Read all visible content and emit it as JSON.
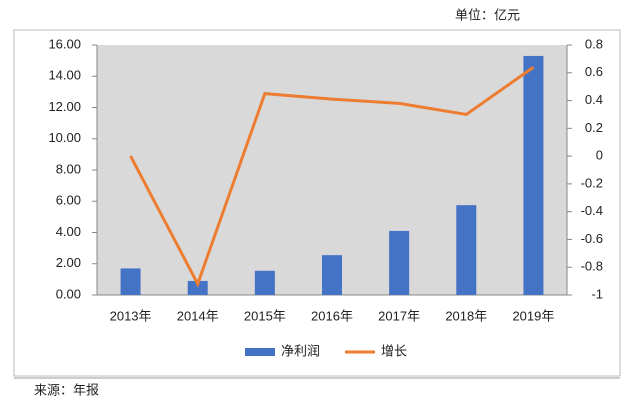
{
  "chart_data": {
    "type": "bar",
    "unit_note": "单位：亿元",
    "source": "来源：年报",
    "categories": [
      "2013年",
      "2014年",
      "2015年",
      "2016年",
      "2017年",
      "2018年",
      "2019年"
    ],
    "series": [
      {
        "name": "净利润",
        "type": "bar",
        "color": "#4472c4",
        "values": [
          1.7,
          0.9,
          1.55,
          2.55,
          4.1,
          5.75,
          15.3
        ]
      },
      {
        "name": "增长",
        "type": "line",
        "axis": "y2",
        "color": "#ed7d31",
        "values": [
          0.0,
          -0.92,
          0.45,
          0.41,
          0.38,
          0.3,
          0.64
        ]
      }
    ],
    "ylim": [
      0,
      16
    ],
    "yticks": [
      {
        "value": 0,
        "label": "0.00"
      },
      {
        "value": 2,
        "label": "2.00"
      },
      {
        "value": 4,
        "label": "4.00"
      },
      {
        "value": 6,
        "label": "6.00"
      },
      {
        "value": 8,
        "label": "8.00"
      },
      {
        "value": 10,
        "label": "10.00"
      },
      {
        "value": 12,
        "label": "12.00"
      },
      {
        "value": 14,
        "label": "14.00"
      },
      {
        "value": 16,
        "label": "16.00"
      }
    ],
    "y2lim": [
      -1,
      0.8
    ],
    "y2ticks": [
      -1,
      -0.8,
      -0.6,
      -0.4,
      -0.2,
      0,
      0.2,
      0.4,
      0.6,
      0.8
    ],
    "grid": false,
    "legend": "bottom"
  }
}
